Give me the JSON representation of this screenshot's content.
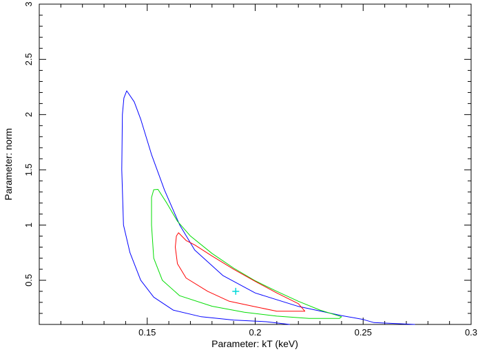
{
  "chart_data": {
    "type": "line",
    "title": "",
    "xlabel": "Parameter: kT (keV)",
    "ylabel": "Parameter: norm",
    "xlim": [
      0.1,
      0.3
    ],
    "ylim": [
      0.1,
      3.0
    ],
    "x_ticks": [
      {
        "value": 0.15,
        "label": "0.15"
      },
      {
        "value": 0.2,
        "label": "0.2"
      },
      {
        "value": 0.25,
        "label": "0.25"
      },
      {
        "value": 0.3,
        "label": "0.3"
      }
    ],
    "y_ticks": [
      {
        "value": 0.5,
        "label": "0.5"
      },
      {
        "value": 1.0,
        "label": "1"
      },
      {
        "value": 1.5,
        "label": "1.5"
      },
      {
        "value": 2.0,
        "label": "2"
      },
      {
        "value": 2.5,
        "label": "2.5"
      },
      {
        "value": 3.0,
        "label": "3"
      }
    ],
    "grid": false,
    "legend": "none",
    "best_fit": {
      "x": 0.191,
      "y": 0.4,
      "color": "#00d8d8"
    },
    "series": [
      {
        "color": "#0000ff",
        "closed": false,
        "points": [
          [
            0.274,
            0.1
          ],
          [
            0.255,
            0.117
          ],
          [
            0.25,
            0.145
          ],
          [
            0.24,
            0.18
          ],
          [
            0.22,
            0.263
          ],
          [
            0.2,
            0.385
          ],
          [
            0.185,
            0.543
          ],
          [
            0.172,
            0.774
          ],
          [
            0.165,
            1.002
          ],
          [
            0.158,
            1.317
          ],
          [
            0.152,
            1.638
          ],
          [
            0.147,
            1.958
          ],
          [
            0.144,
            2.115
          ],
          [
            0.1405,
            2.215
          ],
          [
            0.1392,
            2.15
          ],
          [
            0.1385,
            2.0
          ],
          [
            0.1382,
            1.5
          ],
          [
            0.139,
            1.0
          ],
          [
            0.142,
            0.75
          ],
          [
            0.147,
            0.5
          ],
          [
            0.153,
            0.347
          ],
          [
            0.162,
            0.23
          ],
          [
            0.175,
            0.17
          ],
          [
            0.19,
            0.14
          ],
          [
            0.205,
            0.125
          ],
          [
            0.216,
            0.1
          ]
        ]
      },
      {
        "color": "#00dd00",
        "closed": true,
        "points": [
          [
            0.155,
            1.323
          ],
          [
            0.159,
            1.2
          ],
          [
            0.164,
            1.035
          ],
          [
            0.17,
            0.9
          ],
          [
            0.18,
            0.743
          ],
          [
            0.19,
            0.61
          ],
          [
            0.2,
            0.495
          ],
          [
            0.21,
            0.4
          ],
          [
            0.22,
            0.31
          ],
          [
            0.23,
            0.23
          ],
          [
            0.24,
            0.17
          ],
          [
            0.239,
            0.155
          ],
          [
            0.225,
            0.155
          ],
          [
            0.21,
            0.175
          ],
          [
            0.195,
            0.21
          ],
          [
            0.18,
            0.265
          ],
          [
            0.165,
            0.36
          ],
          [
            0.157,
            0.5
          ],
          [
            0.153,
            0.7
          ],
          [
            0.152,
            1.0
          ],
          [
            0.152,
            1.25
          ],
          [
            0.153,
            1.32
          ]
        ]
      },
      {
        "color": "#ff0000",
        "closed": true,
        "points": [
          [
            0.1645,
            0.93
          ],
          [
            0.168,
            0.86
          ],
          [
            0.172,
            0.82
          ],
          [
            0.18,
            0.72
          ],
          [
            0.19,
            0.6
          ],
          [
            0.2,
            0.49
          ],
          [
            0.21,
            0.385
          ],
          [
            0.22,
            0.288
          ],
          [
            0.223,
            0.22
          ],
          [
            0.21,
            0.22
          ],
          [
            0.2,
            0.26
          ],
          [
            0.188,
            0.31
          ],
          [
            0.178,
            0.4
          ],
          [
            0.168,
            0.52
          ],
          [
            0.164,
            0.65
          ],
          [
            0.163,
            0.8
          ],
          [
            0.1635,
            0.9
          ]
        ]
      }
    ]
  }
}
